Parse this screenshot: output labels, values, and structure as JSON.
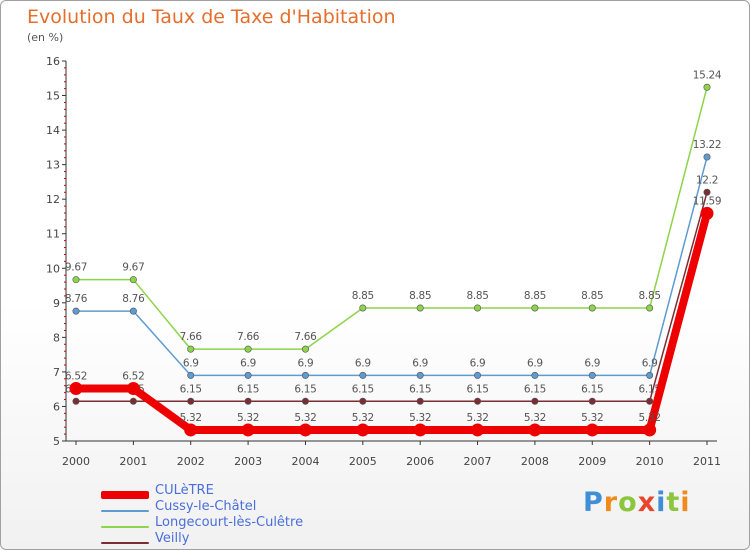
{
  "chart_data": {
    "type": "line",
    "title": "Evolution du Taux de Taxe d'Habitation",
    "subtitle": "(en %)",
    "x": [
      "2000",
      "2001",
      "2002",
      "2003",
      "2004",
      "2005",
      "2006",
      "2007",
      "2008",
      "2009",
      "2010",
      "2011"
    ],
    "ylim": [
      5,
      16
    ],
    "yticks": [
      "5",
      "6",
      "7",
      "8",
      "9",
      "10",
      "11",
      "12",
      "13",
      "14",
      "15",
      "16"
    ],
    "grid": false,
    "legend_position": "bottom-left",
    "series": [
      {
        "name": "Longecourt-lès-Culêtre",
        "color": "#8dd44a",
        "values": [
          9.67,
          9.67,
          7.66,
          7.66,
          7.66,
          8.85,
          8.85,
          8.85,
          8.85,
          8.85,
          8.85,
          15.24
        ],
        "labels": [
          "9.67",
          "9.67",
          "7.66",
          "7.66",
          "7.66",
          "8.85",
          "8.85",
          "8.85",
          "8.85",
          "8.85",
          "8.85",
          "15.24"
        ]
      },
      {
        "name": "Cussy-le-Châtel",
        "color": "#5e9bd1",
        "values": [
          8.76,
          8.76,
          6.9,
          6.9,
          6.9,
          6.9,
          6.9,
          6.9,
          6.9,
          6.9,
          6.9,
          13.22
        ],
        "labels": [
          "8.76",
          "8.76",
          "6.9",
          "6.9",
          "6.9",
          "6.9",
          "6.9",
          "6.9",
          "6.9",
          "6.9",
          "6.9",
          "13.22"
        ]
      },
      {
        "name": "Veilly",
        "color": "#7a2e34",
        "values": [
          6.15,
          6.15,
          6.15,
          6.15,
          6.15,
          6.15,
          6.15,
          6.15,
          6.15,
          6.15,
          6.15,
          12.2
        ],
        "labels": [
          "6.15",
          "6.15",
          "6.15",
          "6.15",
          "6.15",
          "6.15",
          "6.15",
          "6.15",
          "6.15",
          "6.15",
          "6.15",
          "12.2"
        ]
      },
      {
        "name": "CULèTRE",
        "color": "#ee0000",
        "values": [
          6.52,
          6.52,
          5.32,
          5.32,
          5.32,
          5.32,
          5.32,
          5.32,
          5.32,
          5.32,
          5.32,
          11.59
        ],
        "labels": [
          "6.52",
          "6.52",
          "5.32",
          "5.32",
          "5.32",
          "5.32",
          "5.32",
          "5.32",
          "5.32",
          "5.32",
          "5.32",
          "11.59"
        ]
      }
    ],
    "legend": [
      {
        "name": "CULèTRE",
        "color": "#ee0000"
      },
      {
        "name": "Cussy-le-Châtel",
        "color": "#5e9bd1"
      },
      {
        "name": "Longecourt-lès-Culêtre",
        "color": "#8dd44a"
      },
      {
        "name": "Veilly",
        "color": "#7a2e34"
      }
    ]
  },
  "brand": {
    "letters": [
      "P",
      "r",
      "o",
      "x",
      "i",
      "t",
      "i"
    ],
    "colors": [
      "#3f8fd6",
      "#f08a1c",
      "#8cc63e",
      "#e8452c",
      "#3f8fd6",
      "#8cc63e",
      "#f08a1c"
    ]
  }
}
